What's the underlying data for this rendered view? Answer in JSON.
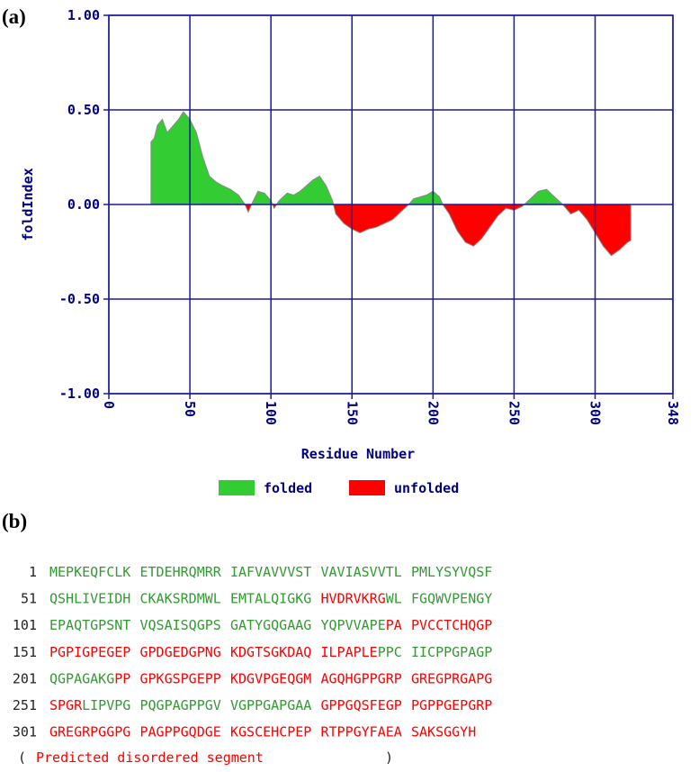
{
  "panel_a": {
    "label": "(a)"
  },
  "chart_data": {
    "type": "area",
    "y_label": "foldIndex",
    "x_label": "Residue Number",
    "xlim": [
      0,
      348
    ],
    "xticks": [
      0,
      50,
      100,
      150,
      200,
      250,
      300,
      348
    ],
    "ylim": [
      -1,
      1
    ],
    "yticks": [
      {
        "value": -1,
        "label": "-1.00"
      },
      {
        "value": -0.5,
        "label": "-0.50"
      },
      {
        "value": 0,
        "label": "0.00"
      },
      {
        "value": 0.5,
        "label": "0.50"
      },
      {
        "value": 1,
        "label": "1.00"
      }
    ],
    "grid": true,
    "x": [
      26,
      28,
      30,
      33,
      36,
      40,
      43,
      46,
      50,
      54,
      58,
      62,
      66,
      70,
      75,
      80,
      84,
      86,
      88,
      92,
      96,
      100,
      102,
      105,
      110,
      114,
      118,
      122,
      126,
      130,
      134,
      138,
      140,
      145,
      150,
      155,
      160,
      165,
      170,
      175,
      180,
      185,
      188,
      192,
      196,
      200,
      204,
      206,
      210,
      215,
      220,
      225,
      230,
      235,
      240,
      245,
      250,
      255,
      260,
      265,
      270,
      275,
      280,
      285,
      290,
      295,
      300,
      305,
      310,
      315,
      320,
      322
    ],
    "values": [
      0.33,
      0.35,
      0.42,
      0.45,
      0.38,
      0.42,
      0.45,
      0.49,
      0.45,
      0.38,
      0.25,
      0.15,
      0.12,
      0.1,
      0.08,
      0.05,
      0.0,
      -0.04,
      0.0,
      0.07,
      0.06,
      0.02,
      -0.02,
      0.02,
      0.06,
      0.05,
      0.07,
      0.1,
      0.13,
      0.15,
      0.1,
      0.02,
      -0.05,
      -0.1,
      -0.13,
      -0.15,
      -0.13,
      -0.12,
      -0.1,
      -0.08,
      -0.04,
      0.0,
      0.03,
      0.04,
      0.05,
      0.07,
      0.04,
      0.0,
      -0.05,
      -0.14,
      -0.2,
      -0.22,
      -0.18,
      -0.12,
      -0.06,
      -0.02,
      -0.03,
      -0.01,
      0.03,
      0.07,
      0.08,
      0.04,
      0.0,
      -0.05,
      -0.03,
      -0.08,
      -0.15,
      -0.22,
      -0.27,
      -0.24,
      -0.2,
      -0.19
    ],
    "legend": [
      {
        "name": "folded",
        "color": "#33cc33"
      },
      {
        "name": "unfolded",
        "color": "#ff0000"
      }
    ]
  },
  "panel_b": {
    "label": "(b)",
    "colors": {
      "ordered": "#339933",
      "disordered": "#ff0000"
    },
    "rows": [
      {
        "num": "1",
        "blocks": [
          [
            {
              "text": "MEPKEQFCLK",
              "disordered": false
            }
          ],
          [
            {
              "text": "ETDEHRQMRR",
              "disordered": false
            }
          ],
          [
            {
              "text": "IAFVAVVVST",
              "disordered": false
            }
          ],
          [
            {
              "text": "VAVIASVVTL",
              "disordered": false
            }
          ],
          [
            {
              "text": "PMLYSYVQSF",
              "disordered": false
            }
          ]
        ]
      },
      {
        "num": "51",
        "blocks": [
          [
            {
              "text": "QSHLIVEIDH",
              "disordered": false
            }
          ],
          [
            {
              "text": "CKAKSRDMWL",
              "disordered": false
            }
          ],
          [
            {
              "text": "EMTALQIGKG",
              "disordered": false
            }
          ],
          [
            {
              "text": "HVDRVKRG",
              "disordered": true
            },
            {
              "text": "WL",
              "disordered": false
            }
          ],
          [
            {
              "text": "FGQWVPENGY",
              "disordered": false
            }
          ]
        ]
      },
      {
        "num": "101",
        "blocks": [
          [
            {
              "text": "EPAQTGPSNT",
              "disordered": false
            }
          ],
          [
            {
              "text": "VQSAISQGPS",
              "disordered": false
            }
          ],
          [
            {
              "text": "GATYGQGAAG",
              "disordered": false
            }
          ],
          [
            {
              "text": "YQPVVAPE",
              "disordered": false
            },
            {
              "text": "PA",
              "disordered": true
            }
          ],
          [
            {
              "text": "PVCCTCHQGP",
              "disordered": true
            }
          ]
        ]
      },
      {
        "num": "151",
        "blocks": [
          [
            {
              "text": "PGPIGPEGEP",
              "disordered": true
            }
          ],
          [
            {
              "text": "GPDGEDGPNG",
              "disordered": true
            }
          ],
          [
            {
              "text": "KDGTSGKDAQ",
              "disordered": true
            }
          ],
          [
            {
              "text": "ILPAPLE",
              "disordered": true
            },
            {
              "text": "PPC",
              "disordered": false
            }
          ],
          [
            {
              "text": "IICPPGPAGP",
              "disordered": false
            }
          ]
        ]
      },
      {
        "num": "201",
        "blocks": [
          [
            {
              "text": "QGPAGAKG",
              "disordered": false
            },
            {
              "text": "PP",
              "disordered": true
            }
          ],
          [
            {
              "text": "GPKGSPGEPP",
              "disordered": true
            }
          ],
          [
            {
              "text": "KDGVPGEQGM",
              "disordered": true
            }
          ],
          [
            {
              "text": "AGQHGPPGRP",
              "disordered": true
            }
          ],
          [
            {
              "text": "GREGPRGAPG",
              "disordered": true
            }
          ]
        ]
      },
      {
        "num": "251",
        "blocks": [
          [
            {
              "text": "SPGR",
              "disordered": true
            },
            {
              "text": "LIPVPG",
              "disordered": false
            }
          ],
          [
            {
              "text": "PQGPAGPPGV",
              "disordered": false
            }
          ],
          [
            {
              "text": "VGPPGAPGAA",
              "disordered": false
            }
          ],
          [
            {
              "text": "GPPGQSFEGP",
              "disordered": true
            }
          ],
          [
            {
              "text": "PGPPGEPGRP",
              "disordered": true
            }
          ]
        ]
      },
      {
        "num": "301",
        "blocks": [
          [
            {
              "text": "GREGRPGGPG",
              "disordered": true
            }
          ],
          [
            {
              "text": "PAGPPGQDGE",
              "disordered": true
            }
          ],
          [
            {
              "text": "KGSCEHCPEP",
              "disordered": true
            }
          ],
          [
            {
              "text": "RTPPGYFAEA",
              "disordered": true
            }
          ],
          [
            {
              "text": "SAKSGGYH",
              "disordered": true
            }
          ]
        ]
      }
    ],
    "footer": {
      "open": "(",
      "text": "Predicted disordered segment",
      "close": ")"
    }
  }
}
